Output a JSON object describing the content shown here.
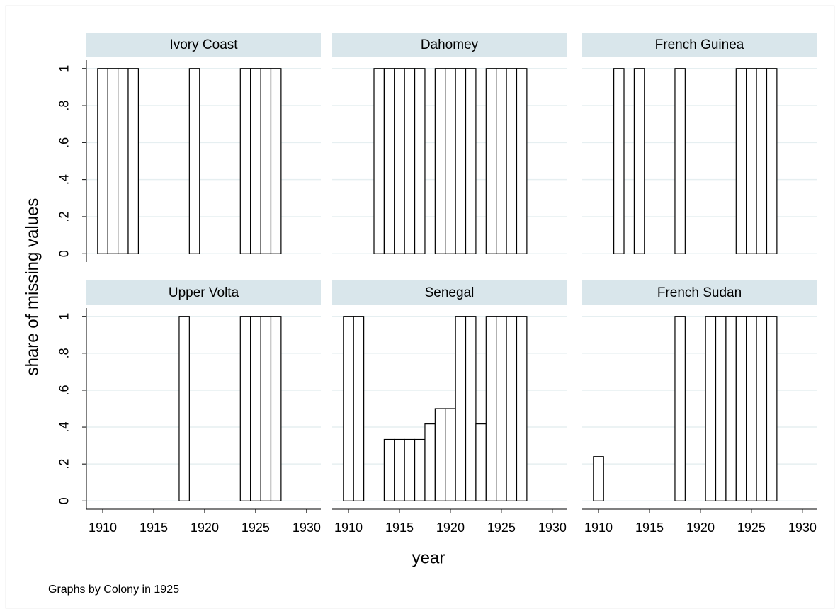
{
  "figure": {
    "ylabel": "share of missing values",
    "xlabel": "year",
    "note": "Graphs by Colony in 1925",
    "ylim": [
      -0.045,
      1.045
    ],
    "yticks": [
      {
        "value": 0,
        "label": "0"
      },
      {
        "value": 0.2,
        "label": ".2"
      },
      {
        "value": 0.4,
        "label": ".4"
      },
      {
        "value": 0.6,
        "label": ".6"
      },
      {
        "value": 0.8,
        "label": ".8"
      },
      {
        "value": 1,
        "label": "1"
      }
    ],
    "xlim": [
      1908.4,
      1931.4
    ],
    "xticks": [
      1910,
      1915,
      1920,
      1925,
      1930
    ],
    "grid": true,
    "bar_fill": "#ffffff",
    "bar_stroke": "#000000",
    "strip_color": "#d9e6eb",
    "grid_color": "#e6eff1"
  },
  "chart_data": [
    {
      "type": "bar",
      "title": "Ivory Coast",
      "x": [
        1910,
        1911,
        1912,
        1913,
        1919,
        1924,
        1925,
        1926,
        1927
      ],
      "values": [
        1,
        1,
        1,
        1,
        1,
        1,
        1,
        1,
        1
      ]
    },
    {
      "type": "bar",
      "title": "Dahomey",
      "x": [
        1913,
        1914,
        1915,
        1916,
        1917,
        1919,
        1920,
        1921,
        1922,
        1924,
        1925,
        1926,
        1927
      ],
      "values": [
        1,
        1,
        1,
        1,
        1,
        1,
        1,
        1,
        1,
        1,
        1,
        1,
        1
      ]
    },
    {
      "type": "bar",
      "title": "French Guinea",
      "x": [
        1912,
        1914,
        1918,
        1924,
        1925,
        1926,
        1927
      ],
      "values": [
        1,
        1,
        1,
        1,
        1,
        1,
        1
      ]
    },
    {
      "type": "bar",
      "title": "Upper Volta",
      "x": [
        1918,
        1924,
        1925,
        1926,
        1927
      ],
      "values": [
        1,
        1,
        1,
        1,
        1
      ]
    },
    {
      "type": "bar",
      "title": "Senegal",
      "x": [
        1910,
        1911,
        1914,
        1915,
        1916,
        1917,
        1918,
        1919,
        1920,
        1921,
        1922,
        1923,
        1924,
        1925,
        1926,
        1927
      ],
      "values": [
        1,
        1,
        0.333,
        0.333,
        0.333,
        0.333,
        0.417,
        0.5,
        0.5,
        1,
        1,
        0.417,
        1,
        1,
        1,
        1
      ]
    },
    {
      "type": "bar",
      "title": "French Sudan",
      "x": [
        1910,
        1918,
        1921,
        1922,
        1923,
        1924,
        1925,
        1926,
        1927
      ],
      "values": [
        0.24,
        1,
        1,
        1,
        1,
        1,
        1,
        1,
        1
      ]
    }
  ]
}
